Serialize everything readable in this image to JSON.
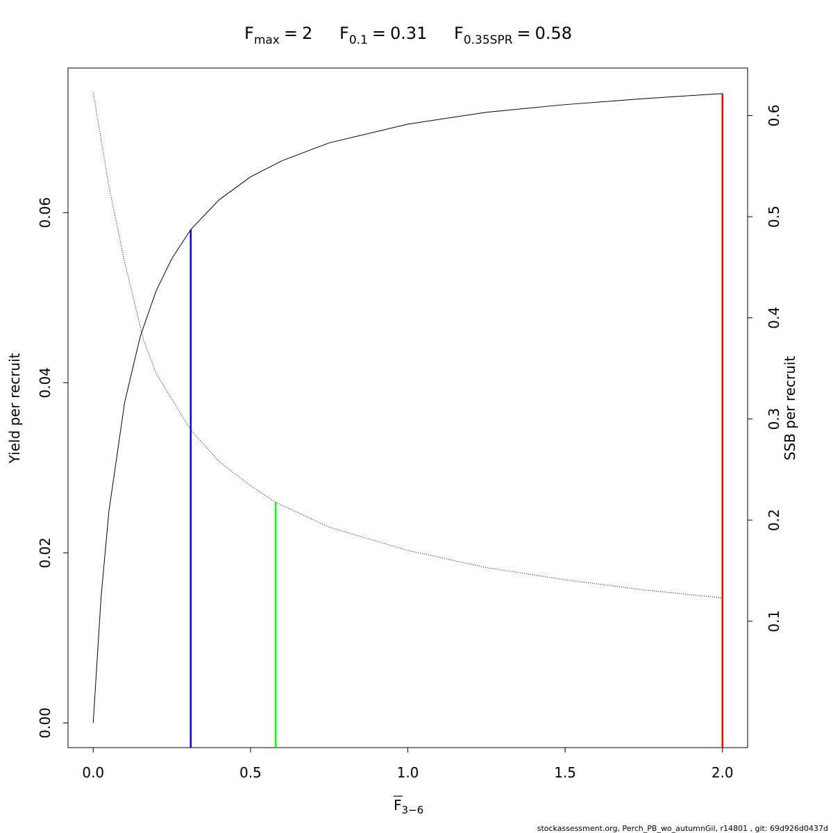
{
  "chart_data": {
    "type": "line",
    "title_items": [
      {
        "symbol": "F",
        "subscript": "max",
        "relation": "=",
        "value": 2,
        "color": "#ff0000",
        "top": 0.074,
        "top_axis": "y"
      },
      {
        "symbol": "F",
        "subscript": "0.1",
        "relation": "=",
        "value": 0.31,
        "color": "#0000ff",
        "top": 0.058,
        "top_axis": "y"
      },
      {
        "symbol": "F",
        "subscript": "0.35SPR",
        "relation": "=",
        "value": 0.58,
        "color": "#00ff00",
        "top": 0.2175,
        "top_axis": "y2"
      }
    ],
    "xlabel": {
      "symbol": "F",
      "subscript": "3−6"
    },
    "ylabel": "Yield per recruit",
    "y2label": "SSB per recruit",
    "footer": "stockassessment.org, Perch_PB_wo_autumnGil, r14801 , git: 69d926d0437d",
    "series": [
      {
        "name": "Yield per recruit",
        "color": "#000000",
        "style": "solid",
        "x": [
          0,
          0.025,
          0.05,
          0.1,
          0.15,
          0.2,
          0.25,
          0.31,
          0.4,
          0.5,
          0.6,
          0.75,
          1,
          1.25,
          1.5,
          1.75,
          2
        ],
        "values": [
          0,
          0.0148,
          0.0249,
          0.0377,
          0.0455,
          0.0508,
          0.0546,
          0.058,
          0.0615,
          0.0642,
          0.0661,
          0.0682,
          0.0704,
          0.0718,
          0.0727,
          0.0734,
          0.074
        ]
      },
      {
        "name": "SSB per recruit",
        "color": "#000000",
        "style": "dotted",
        "axis": "y2",
        "x": [
          0,
          0.05,
          0.1,
          0.16,
          0.2,
          0.31,
          0.4,
          0.5,
          0.58,
          0.75,
          1,
          1.25,
          1.5,
          1.75,
          2
        ],
        "values": [
          0.623,
          0.53,
          0.455,
          0.378,
          0.345,
          0.289,
          0.258,
          0.234,
          0.2175,
          0.193,
          0.17,
          0.153,
          0.141,
          0.131,
          0.123
        ]
      }
    ],
    "xlim": [
      -0.08,
      2.08
    ],
    "ylim": [
      -0.0029,
      0.077
    ],
    "y2lim": [
      -0.025,
      0.647
    ],
    "xticks": [
      {
        "value": 0,
        "label": "0.0"
      },
      {
        "value": 0.5,
        "label": "0.5"
      },
      {
        "value": 1,
        "label": "1.0"
      },
      {
        "value": 1.5,
        "label": "1.5"
      },
      {
        "value": 2,
        "label": "2.0"
      }
    ],
    "yticks": [
      {
        "value": 0,
        "label": "0.00"
      },
      {
        "value": 0.02,
        "label": "0.02"
      },
      {
        "value": 0.04,
        "label": "0.04"
      },
      {
        "value": 0.06,
        "label": "0.06"
      }
    ],
    "y2ticks": [
      0.1,
      0.2,
      0.3,
      0.4,
      0.5,
      0.6
    ]
  }
}
